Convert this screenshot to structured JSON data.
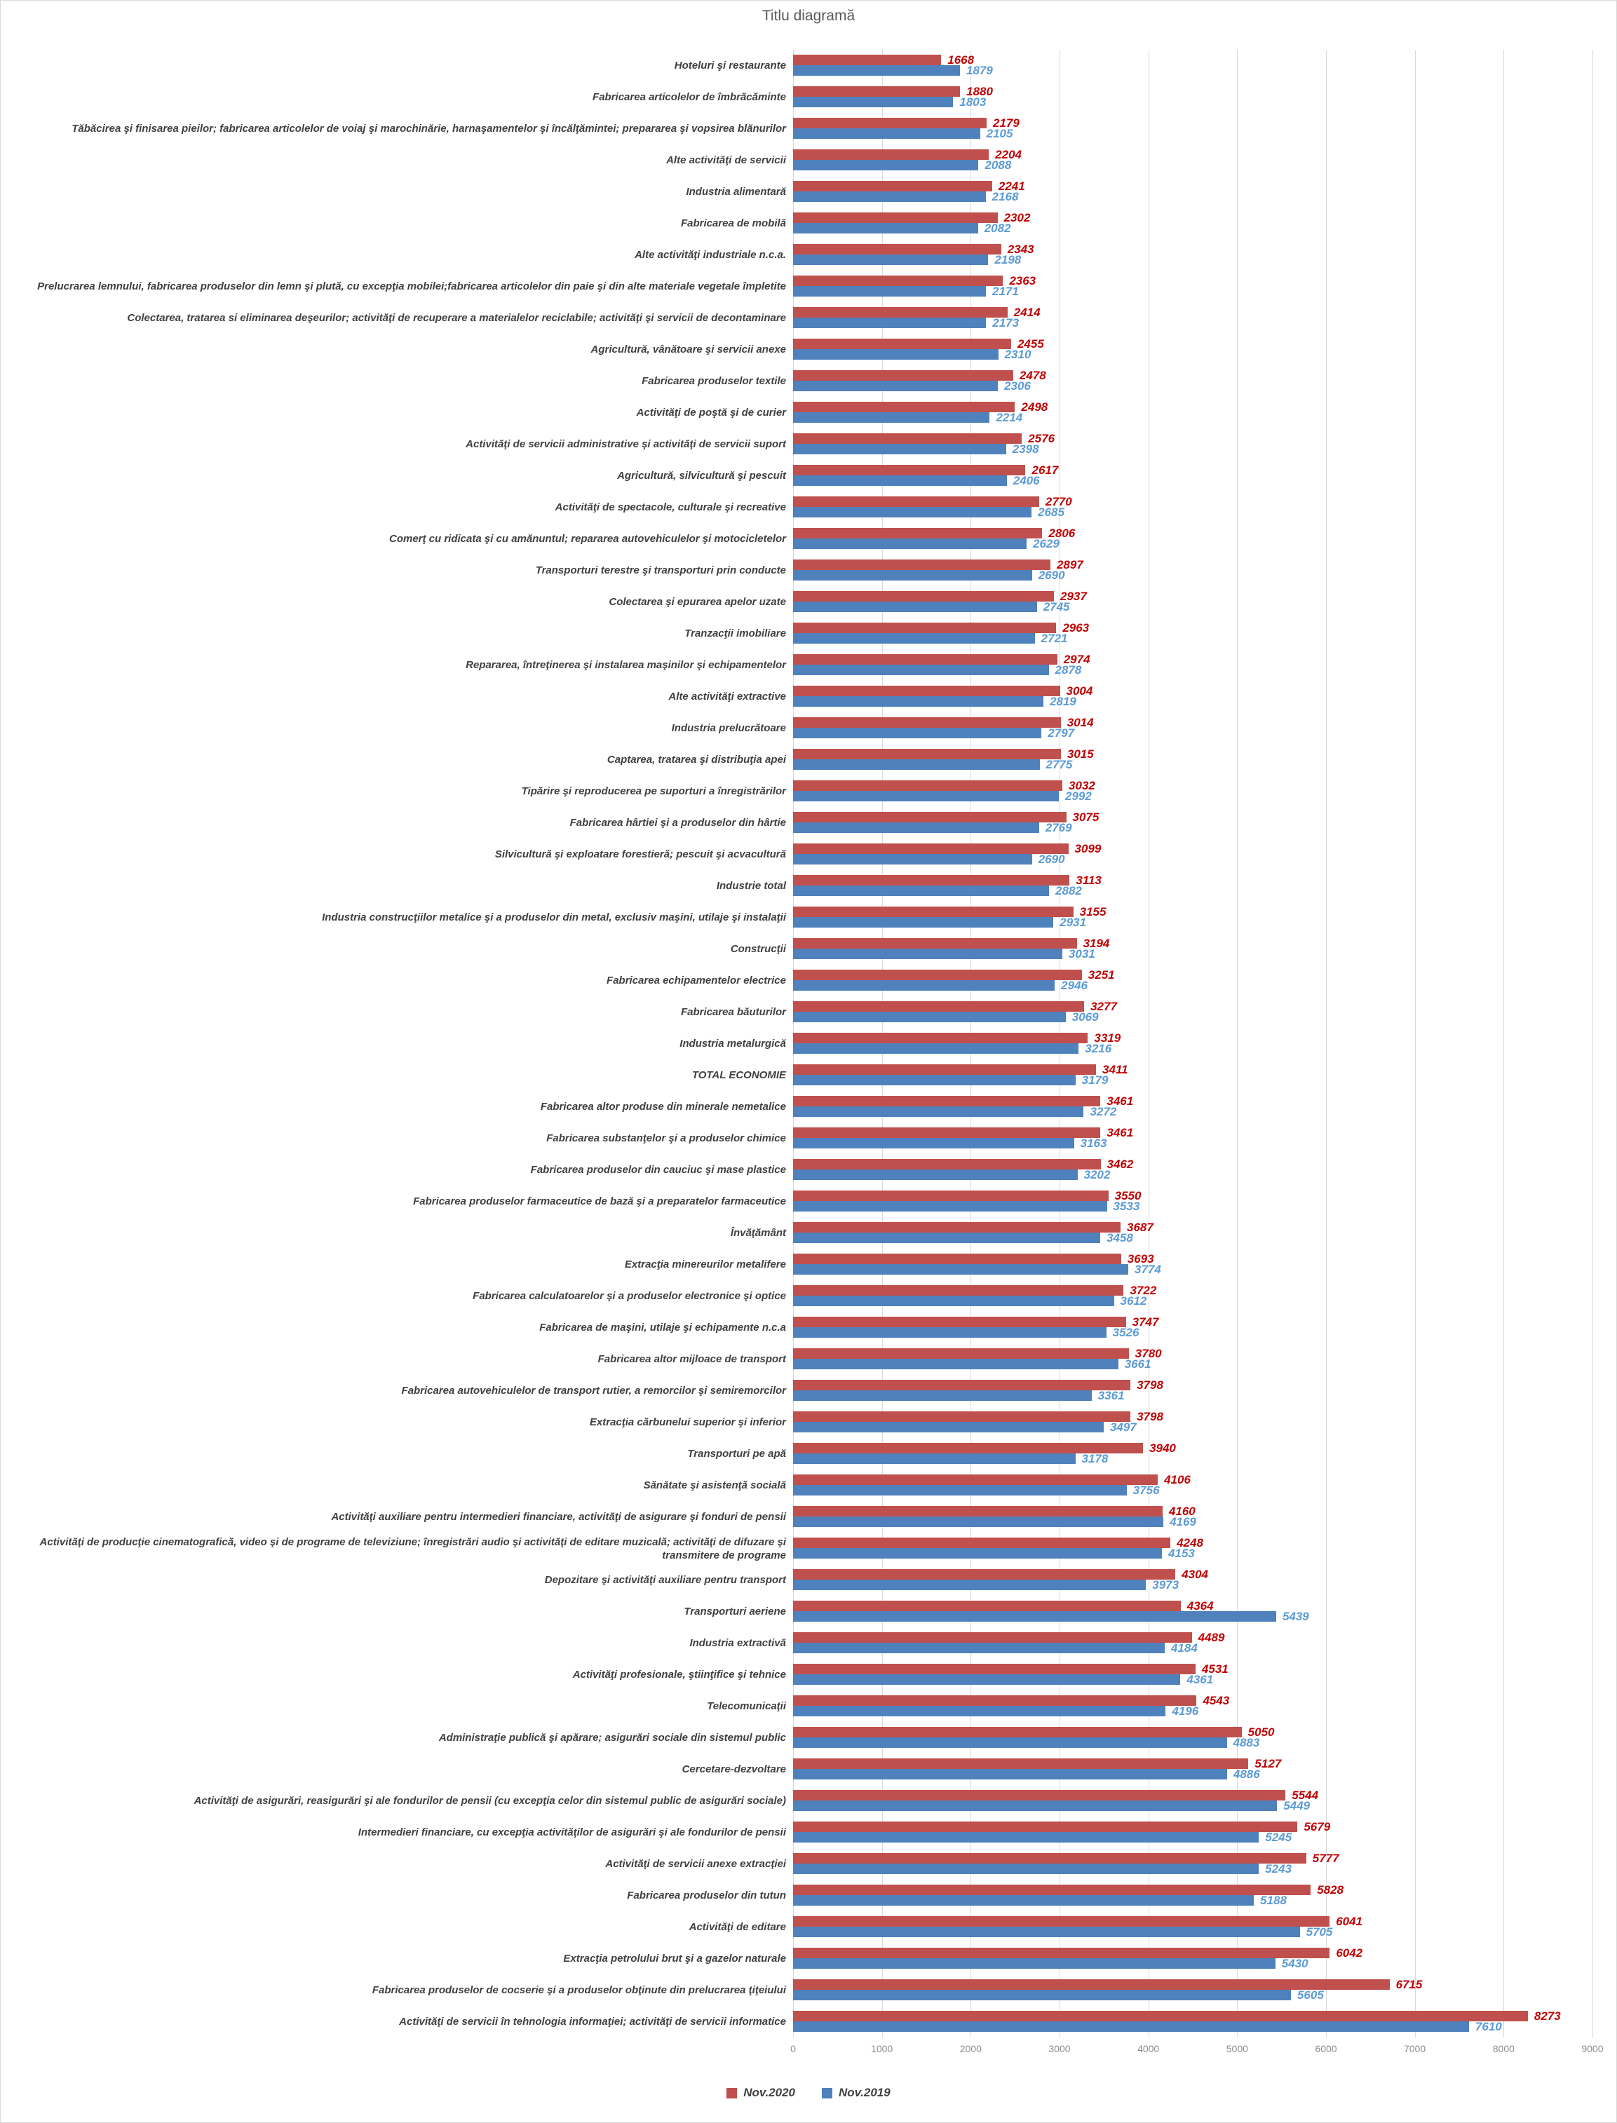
{
  "title": "Titlu diagramă",
  "colors": {
    "bar_2020": "#C0504D",
    "bar_2019": "#4F81BD",
    "label_2020": "#C00000",
    "label_2019": "#5B9BD5",
    "gridline": "#D9D9D9",
    "category_text": "#404040",
    "axis_text": "#8C8C8C",
    "title_text": "#595959"
  },
  "chart_data": {
    "type": "bar",
    "orientation": "horizontal",
    "title": "Titlu diagramă",
    "xlabel": "",
    "ylabel": "",
    "xlim": [
      0,
      9000
    ],
    "x_ticks": [
      "0",
      "1000",
      "2000",
      "3000",
      "4000",
      "5000",
      "6000",
      "7000",
      "8000",
      "9000"
    ],
    "grid": true,
    "legend_position": "bottom-center",
    "data_labels": true,
    "categories": [
      "Hoteluri şi restaurante",
      "Fabricarea articolelor de îmbrăcăminte",
      "Tăbăcirea şi finisarea pieilor; fabricarea articolelor de voiaj şi marochinărie, harnaşamentelor şi încălţămintei; prepararea şi vopsirea blănurilor",
      "Alte activităţi de servicii",
      "Industria alimentară",
      "Fabricarea de mobilă",
      "Alte activităţi industriale n.c.a.",
      "Prelucrarea lemnului, fabricarea produselor din lemn şi plută, cu excepţia mobilei;fabricarea articolelor din paie şi din alte materiale vegetale împletite",
      "Colectarea, tratarea si eliminarea deşeurilor; activităţi de recuperare a materialelor reciclabile; activităţi şi servicii de decontaminare",
      "Agricultură, vânătoare şi servicii anexe",
      "Fabricarea produselor textile",
      "Activităţi de poştă şi de curier",
      "Activităţi de servicii administrative şi activităţi de servicii suport",
      "Agricultură, silvicultură şi pescuit",
      "Activităţi de spectacole, culturale şi recreative",
      "Comerţ cu ridicata şi cu amănuntul; repararea autovehiculelor şi motocicletelor",
      "Transporturi terestre şi transporturi prin conducte",
      "Colectarea şi epurarea apelor uzate",
      "Tranzacţii imobiliare",
      "Repararea, întreţinerea şi instalarea maşinilor şi echipamentelor",
      "Alte activităţi extractive",
      "Industria prelucrătoare",
      "Captarea, tratarea şi distribuţia apei",
      "Tipărire şi reproducerea pe suporturi a înregistrărilor",
      "Fabricarea hârtiei şi a produselor din hârtie",
      "Silvicultură şi exploatare forestieră; pescuit şi acvacultură",
      "Industrie total",
      "Industria construcţiilor metalice şi a produselor din metal, exclusiv maşini, utilaje şi instalaţii",
      "Construcţii",
      "Fabricarea echipamentelor electrice",
      "Fabricarea băuturilor",
      "Industria metalurgică",
      "TOTAL ECONOMIE",
      "Fabricarea altor produse din minerale nemetalice",
      "Fabricarea substanţelor şi a produselor chimice",
      "Fabricarea produselor din cauciuc şi mase plastice",
      "Fabricarea produselor farmaceutice de bază şi a preparatelor farmaceutice",
      "Învăţământ",
      "Extracţia minereurilor metalifere",
      "Fabricarea calculatoarelor şi a produselor electronice şi optice",
      "Fabricarea de maşini, utilaje şi echipamente n.c.a",
      "Fabricarea altor mijloace de transport",
      "Fabricarea autovehiculelor de transport rutier, a remorcilor şi semiremorcilor",
      "Extracţia cărbunelui superior şi inferior",
      "Transporturi pe apă",
      "Sănătate şi asistenţă socială",
      "Activităţi auxiliare pentru intermedieri financiare, activităţi de asigurare şi fonduri de pensii",
      "Activităţi de producţie cinematografică, video şi de programe de televiziune; înregistrări audio şi activităţi de editare muzicală; activităţi de difuzare şi transmitere de programe",
      "Depozitare şi activităţi auxiliare pentru transport",
      "Transporturi aeriene",
      "Industria extractivă",
      "Activităţi profesionale, ştiinţifice şi tehnice",
      "Telecomunicaţii",
      "Administraţie publică şi apărare; asigurări sociale din sistemul public",
      "Cercetare-dezvoltare",
      "Activităţi de asigurări, reasigurări şi ale fondurilor de pensii (cu excepţia celor din sistemul public de asigurări sociale)",
      "Intermedieri financiare, cu excepţia activităţilor de asigurări şi ale fondurilor de pensii",
      "Activităţi de servicii anexe extracţiei",
      "Fabricarea produselor din tutun",
      "Activităţi de editare",
      "Extracţia petrolului brut şi a gazelor naturale",
      "Fabricarea produselor de cocserie şi a produselor obţinute din prelucrarea ţiţeiului",
      "Activităţi de servicii în tehnologia informaţiei; activităţi de servicii informatice"
    ],
    "series": [
      {
        "name": "Nov.2020",
        "color": "#C0504D",
        "label_color": "#C00000",
        "values": [
          1668,
          1880,
          2179,
          2204,
          2241,
          2302,
          2343,
          2363,
          2414,
          2455,
          2478,
          2498,
          2576,
          2617,
          2770,
          2806,
          2897,
          2937,
          2963,
          2974,
          3004,
          3014,
          3015,
          3032,
          3075,
          3099,
          3113,
          3155,
          3194,
          3251,
          3277,
          3319,
          3411,
          3461,
          3461,
          3462,
          3550,
          3687,
          3693,
          3722,
          3747,
          3780,
          3798,
          3798,
          3940,
          4106,
          4160,
          4248,
          4304,
          4364,
          4489,
          4531,
          4543,
          5050,
          5127,
          5544,
          5679,
          5777,
          5828,
          6041,
          6042,
          6715,
          8273
        ]
      },
      {
        "name": "Nov.2019",
        "color": "#4F81BD",
        "label_color": "#5B9BD5",
        "values": [
          1879,
          1803,
          2105,
          2088,
          2168,
          2082,
          2198,
          2171,
          2173,
          2310,
          2306,
          2214,
          2398,
          2406,
          2685,
          2629,
          2690,
          2745,
          2721,
          2878,
          2819,
          2797,
          2775,
          2992,
          2769,
          2690,
          2882,
          2931,
          3031,
          2946,
          3069,
          3216,
          3179,
          3272,
          3163,
          3202,
          3533,
          3458,
          3774,
          3612,
          3526,
          3661,
          3361,
          3497,
          3178,
          3756,
          4169,
          4153,
          3973,
          5439,
          4184,
          4361,
          4196,
          4883,
          4886,
          5449,
          5245,
          5243,
          5188,
          5705,
          5430,
          5605,
          7610
        ]
      }
    ]
  }
}
